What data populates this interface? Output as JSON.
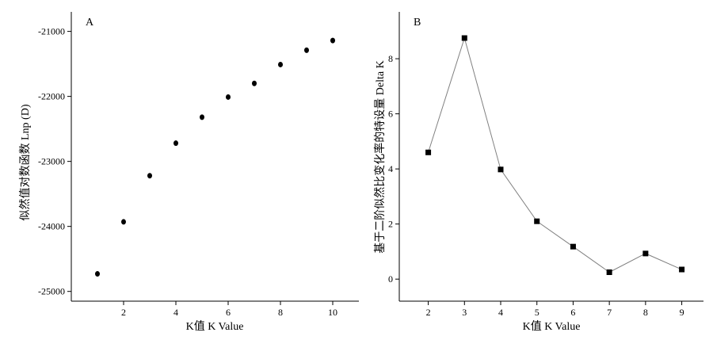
{
  "chart_data": [
    {
      "type": "scatter",
      "panel_label": "A",
      "title": "",
      "xlabel": "K值 K Value",
      "ylabel": "似然值对数函数 Lnp (D)",
      "xlim": [
        0,
        11
      ],
      "ylim": [
        -25150,
        -20700
      ],
      "x_ticks": [
        2,
        4,
        6,
        8,
        10
      ],
      "y_ticks": [
        -25000,
        -24000,
        -23000,
        -22000,
        -21000
      ],
      "x": [
        1,
        2,
        3,
        4,
        5,
        6,
        7,
        8,
        9,
        10
      ],
      "y": [
        -24730,
        -23930,
        -23220,
        -22720,
        -22320,
        -22010,
        -21800,
        -21510,
        -21290,
        -21140
      ],
      "marker": "circle",
      "color": "#000000",
      "grid": false
    },
    {
      "type": "line",
      "panel_label": "B",
      "title": "",
      "xlabel": "K值 K Value",
      "ylabel": "基于二阶似然比变化率的特设量 Delta K",
      "xlim": [
        1.2,
        9.6
      ],
      "ylim": [
        -0.8,
        9.7
      ],
      "x_ticks": [
        2,
        3,
        4,
        5,
        6,
        7,
        8,
        9
      ],
      "y_ticks": [
        0,
        2,
        4,
        6,
        8
      ],
      "x": [
        2,
        3,
        4,
        5,
        6,
        7,
        8,
        9
      ],
      "y": [
        4.6,
        8.75,
        3.98,
        2.1,
        1.18,
        0.25,
        0.93,
        0.35
      ],
      "marker": "square",
      "line_color": "#808080",
      "color": "#000000",
      "grid": false
    }
  ]
}
